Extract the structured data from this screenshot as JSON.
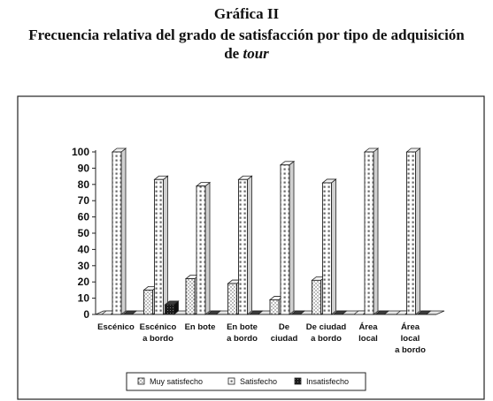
{
  "figure": {
    "heading": "Gráfica II",
    "title_line1": "Frecuencia relativa del grado de satisfacción por tipo de adquisición",
    "title_line2_prefix": "de ",
    "title_line2_italic": "tour"
  },
  "chart_data": {
    "type": "bar",
    "style": "3d-clustered-column",
    "title": "Frecuencia relativa del grado de satisfacción por tipo de adquisición de tour",
    "xlabel": "",
    "ylabel": "",
    "ylim": [
      0,
      100
    ],
    "yticks": [
      "0",
      "10",
      "20",
      "30",
      "40",
      "50",
      "60",
      "70",
      "80",
      "90",
      "100"
    ],
    "grid": false,
    "legend_position": "bottom",
    "categories": [
      [
        "Escénico"
      ],
      [
        "Escénico",
        "a bordo"
      ],
      [
        "En bote"
      ],
      [
        "En bote",
        "a bordo"
      ],
      [
        "De",
        "ciudad"
      ],
      [
        "De ciudad",
        "a bordo"
      ],
      [
        "Área",
        "local"
      ],
      [
        "Área",
        "local",
        "a bordo"
      ]
    ],
    "series": [
      {
        "name": "Muy satisfecho",
        "values": [
          0,
          15,
          22,
          19,
          9,
          21,
          0,
          0
        ],
        "pattern": "dots",
        "color": "#ffffff"
      },
      {
        "name": "Satisfecho",
        "values": [
          100,
          83,
          79,
          83,
          92,
          81,
          100,
          100
        ],
        "pattern": "squares",
        "color": "#ffffff"
      },
      {
        "name": "Insatisfecho",
        "values": [
          0,
          6,
          0,
          0,
          0,
          0,
          0,
          0
        ],
        "pattern": "dark",
        "color": "#222222"
      }
    ]
  }
}
